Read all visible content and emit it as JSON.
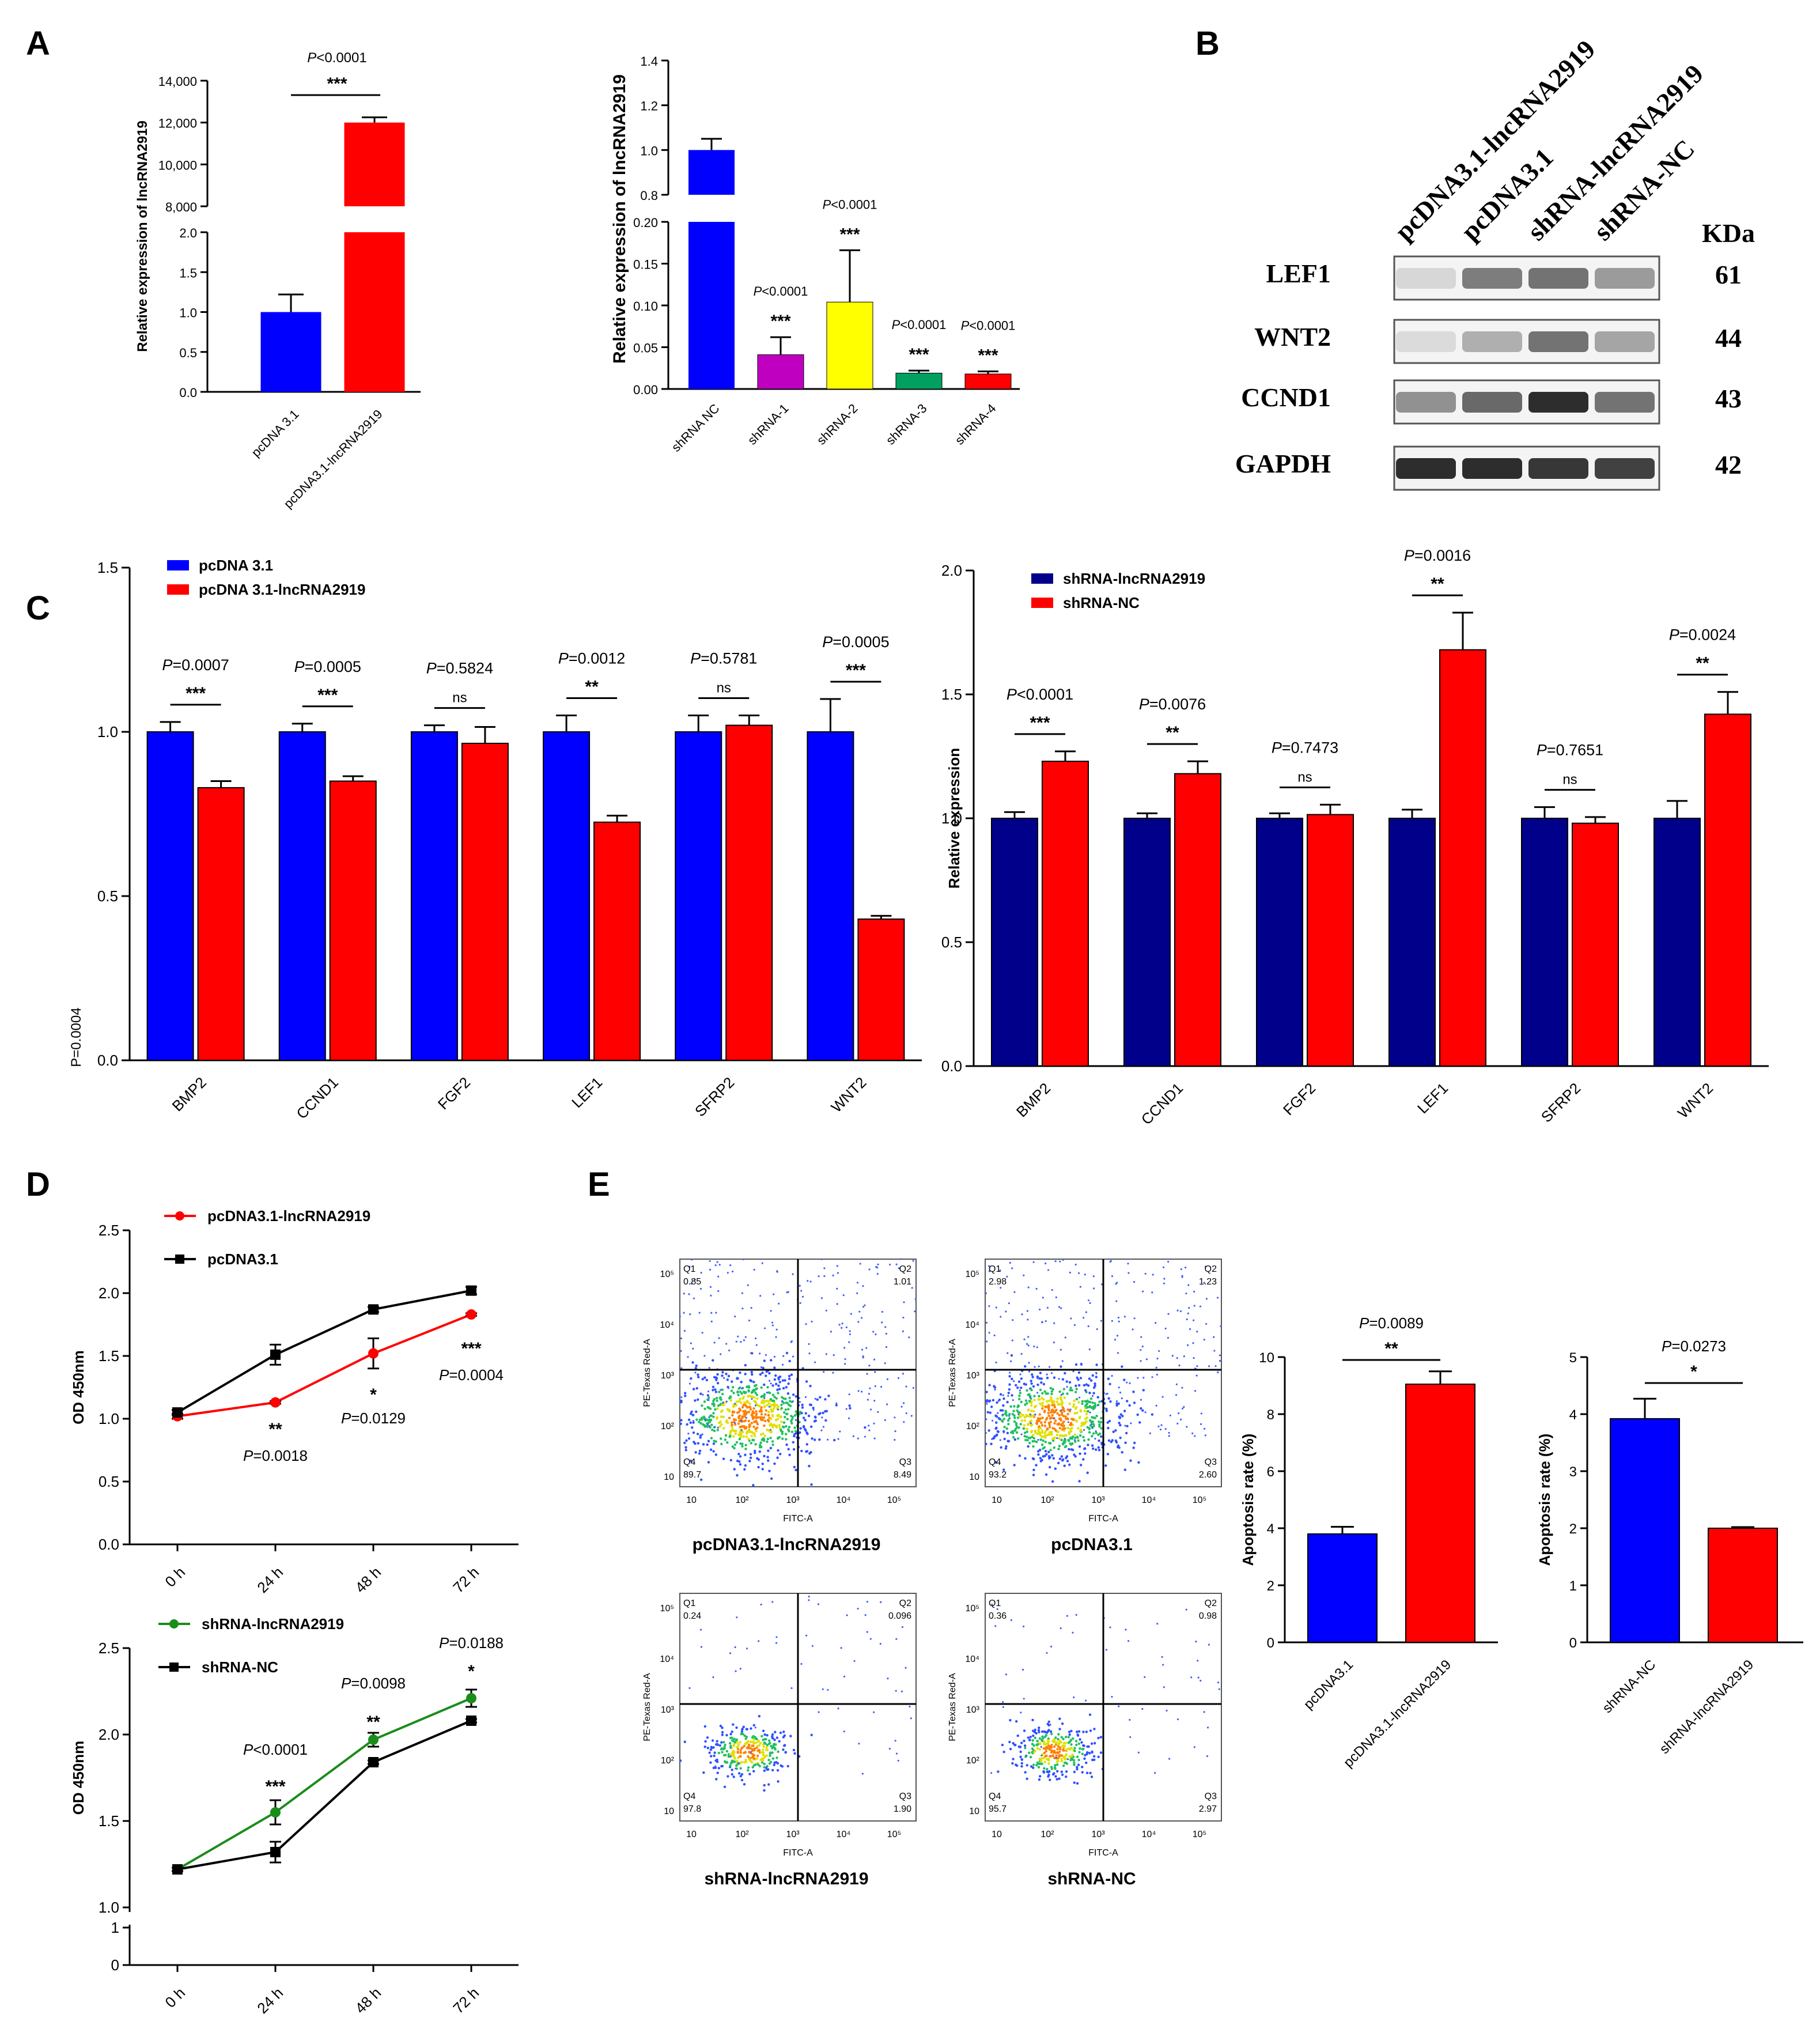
{
  "panels": {
    "A": "A",
    "B": "B",
    "C": "C",
    "D": "D",
    "E": "E"
  },
  "colors": {
    "blue": "#0000ff",
    "red": "#ff0000",
    "navy": "#00008b",
    "magenta": "#c000c0",
    "yellow": "#ffff00",
    "green": "#00a060",
    "black": "#000000",
    "green_line": "#1a8c1a"
  },
  "chart_data": [
    {
      "id": "A1",
      "type": "bar",
      "broken_axis": true,
      "ylabel": "Relative expression of lncRNA2919",
      "categories": [
        "pcDNA 3.1",
        "pcDNA3.1-lncRNA2919"
      ],
      "values": [
        1.0,
        12000
      ],
      "errors": [
        0.22,
        250
      ],
      "colors": [
        "blue",
        "red"
      ],
      "lower_ylim": [
        0,
        2.0
      ],
      "lower_ticks": [
        "0.0",
        "0.5",
        "1.0",
        "1.5",
        "2.0"
      ],
      "upper_ylim": [
        8000,
        14000
      ],
      "upper_ticks": [
        "8,000",
        "10,000",
        "12,000",
        "14,000"
      ],
      "annotations": [
        {
          "p": "P<0.0001",
          "stars": "***",
          "between": [
            0,
            1
          ]
        }
      ]
    },
    {
      "id": "A2",
      "type": "bar",
      "broken_axis": true,
      "ylabel": "Relative expression of lncRNA2919",
      "categories": [
        "shRNA NC",
        "shRNA-1",
        "shRNA-2",
        "shRNA-3",
        "shRNA-4"
      ],
      "values": [
        1.0,
        0.041,
        0.104,
        0.019,
        0.018
      ],
      "errors": [
        0.05,
        0.021,
        0.062,
        0.003,
        0.003
      ],
      "colors": [
        "blue",
        "magenta",
        "yellow",
        "green",
        "red"
      ],
      "lower_ylim": [
        0,
        0.2
      ],
      "lower_ticks": [
        "0.00",
        "0.05",
        "0.10",
        "0.15",
        "0.20"
      ],
      "upper_ylim": [
        0.8,
        1.4
      ],
      "upper_ticks": [
        "0.8",
        "1.0",
        "1.2",
        "1.4"
      ],
      "annotations": [
        {
          "p": "",
          "stars": "",
          "bar": 0
        },
        {
          "p": "P<0.0001",
          "stars": "***",
          "bar": 1
        },
        {
          "p": "P<0.0001",
          "stars": "***",
          "bar": 2
        },
        {
          "p": "P<0.0001",
          "stars": "***",
          "bar": 3
        },
        {
          "p": "P<0.0001",
          "stars": "***",
          "bar": 4
        }
      ]
    },
    {
      "id": "C1",
      "type": "bar",
      "legend": [
        "pcDNA 3.1",
        "pcDNA 3.1-lncRNA2919"
      ],
      "ylabel": "P=0.0004",
      "categories": [
        "BMP2",
        "CCND1",
        "FGF2",
        "LEF1",
        "SFRP2",
        "WNT2"
      ],
      "ylim": [
        0,
        1.5
      ],
      "yticks": [
        "0.0",
        "0.5",
        "1.0",
        "1.5"
      ],
      "series": [
        {
          "name": "pcDNA 3.1",
          "color": "blue",
          "values": [
            1.0,
            1.0,
            1.0,
            1.0,
            1.0,
            1.0
          ],
          "errors": [
            0.03,
            0.025,
            0.02,
            0.05,
            0.05,
            0.1
          ]
        },
        {
          "name": "pcDNA 3.1-lncRNA2919",
          "color": "red",
          "values": [
            0.83,
            0.85,
            0.965,
            0.725,
            1.02,
            0.43
          ],
          "errors": [
            0.02,
            0.015,
            0.05,
            0.02,
            0.03,
            0.01
          ]
        }
      ],
      "annotations": [
        {
          "p": "P=0.0007",
          "stars": "***"
        },
        {
          "p": "P=0.0005",
          "stars": "***"
        },
        {
          "p": "P=0.5824",
          "stars": "ns"
        },
        {
          "p": "P=0.0012",
          "stars": "**"
        },
        {
          "p": "P=0.5781",
          "stars": "ns"
        },
        {
          "p": "P=0.0005",
          "stars": "***"
        }
      ]
    },
    {
      "id": "C2",
      "type": "bar",
      "legend": [
        "shRNA-lncRNA2919",
        "shRNA-NC"
      ],
      "ylabel": "Relative expression",
      "categories": [
        "BMP2",
        "CCND1",
        "FGF2",
        "LEF1",
        "SFRP2",
        "WNT2"
      ],
      "ylim": [
        0,
        2.0
      ],
      "yticks": [
        "0.0",
        "0.5",
        "1.0",
        "1.5",
        "2.0"
      ],
      "series": [
        {
          "name": "shRNA-lncRNA2919",
          "color": "navy",
          "values": [
            1.0,
            1.0,
            1.0,
            1.0,
            1.0,
            1.0
          ],
          "errors": [
            0.025,
            0.02,
            0.02,
            0.035,
            0.045,
            0.07
          ]
        },
        {
          "name": "shRNA-NC",
          "color": "red",
          "values": [
            1.23,
            1.18,
            1.015,
            1.68,
            0.98,
            1.42
          ],
          "errors": [
            0.04,
            0.05,
            0.04,
            0.15,
            0.025,
            0.09
          ]
        }
      ],
      "annotations": [
        {
          "p": "P<0.0001",
          "stars": "***"
        },
        {
          "p": "P=0.0076",
          "stars": "**"
        },
        {
          "p": "P=0.7473",
          "stars": "ns"
        },
        {
          "p": "P=0.0016",
          "stars": "**"
        },
        {
          "p": "P=0.7651",
          "stars": "ns"
        },
        {
          "p": "P=0.0024",
          "stars": "**"
        }
      ]
    },
    {
      "id": "D1",
      "type": "line",
      "ylabel": "OD 450nm",
      "x": [
        "0 h",
        "24 h",
        "48 h",
        "72 h"
      ],
      "ylim": [
        0,
        2.5
      ],
      "yticks": [
        "0.0",
        "0.5",
        "1.0",
        "1.5",
        "2.0",
        "2.5"
      ],
      "series": [
        {
          "name": "pcDNA3.1-lncRNA2919",
          "color": "red",
          "marker": "circle",
          "values": [
            1.02,
            1.13,
            1.52,
            1.83
          ],
          "errors": [
            0.02,
            0.01,
            0.12,
            0.01
          ]
        },
        {
          "name": "pcDNA3.1",
          "color": "black",
          "marker": "square",
          "values": [
            1.05,
            1.51,
            1.87,
            2.02
          ],
          "errors": [
            0.02,
            0.08,
            0.02,
            0.03
          ]
        }
      ],
      "annotations": [
        {
          "stars": "**",
          "p": "P=0.0018"
        },
        {
          "stars": "*",
          "p": "P=0.0129"
        },
        {
          "stars": "***",
          "p": "P=0.0004"
        }
      ]
    },
    {
      "id": "D2",
      "type": "line",
      "broken_axis": true,
      "ylabel": "OD 450nm",
      "x": [
        "0 h",
        "24 h",
        "48 h",
        "72 h"
      ],
      "ylim": [
        1.0,
        2.5
      ],
      "yticks": [
        "1.0",
        "1.5",
        "2.0",
        "2.5"
      ],
      "lower_ticks": [
        "0",
        "1"
      ],
      "series": [
        {
          "name": "shRNA-lncRNA2919",
          "color": "green_line",
          "marker": "circle",
          "values": [
            1.22,
            1.55,
            1.97,
            2.21
          ],
          "errors": [
            0.01,
            0.07,
            0.04,
            0.05
          ]
        },
        {
          "name": "shRNA-NC",
          "color": "black",
          "marker": "square",
          "values": [
            1.22,
            1.32,
            1.84,
            2.08
          ],
          "errors": [
            0.01,
            0.06,
            0.01,
            0.01
          ]
        }
      ],
      "annotations": [
        {
          "stars": "***",
          "p": "P<0.0001"
        },
        {
          "stars": "**",
          "p": "P=0.0098"
        },
        {
          "stars": "*",
          "p": "P=0.0188"
        }
      ]
    },
    {
      "id": "E1",
      "type": "bar",
      "ylabel": "Apoptosis rate (%)",
      "categories": [
        "pcDNA3.1",
        "pcDNA3.1-lncRNA2919"
      ],
      "values": [
        3.8,
        9.05
      ],
      "errors": [
        0.25,
        0.45
      ],
      "colors": [
        "blue",
        "red"
      ],
      "ylim": [
        0,
        10
      ],
      "yticks": [
        "0",
        "2",
        "4",
        "6",
        "8",
        "10"
      ],
      "annotation": {
        "p": "P=0.0089",
        "stars": "**"
      }
    },
    {
      "id": "E2",
      "type": "bar",
      "ylabel": "Apoptosis rate (%)",
      "categories": [
        "shRNA-NC",
        "shRNA-lncRNA2919"
      ],
      "values": [
        3.92,
        2.0
      ],
      "errors": [
        0.35,
        0.02
      ],
      "colors": [
        "blue",
        "red"
      ],
      "ylim": [
        0,
        5
      ],
      "yticks": [
        "0",
        "1",
        "2",
        "3",
        "4",
        "5"
      ],
      "annotation": {
        "p": "P=0.0273",
        "stars": "*"
      }
    }
  ],
  "western_blot": {
    "lanes": [
      "pcDNA3.1-lncRNA2919",
      "pcDNA3.1",
      "shRNA-lncRNA2919",
      "shRNA-NC"
    ],
    "kda_header": "KDa",
    "rows": [
      {
        "label": "LEF1",
        "kda": "61",
        "intensity": [
          0.1,
          0.55,
          0.6,
          0.4
        ]
      },
      {
        "label": "WNT2",
        "kda": "44",
        "intensity": [
          0.08,
          0.3,
          0.6,
          0.35
        ]
      },
      {
        "label": "CCND1",
        "kda": "43",
        "intensity": [
          0.45,
          0.65,
          0.95,
          0.6
        ]
      },
      {
        "label": "GAPDH",
        "kda": "42",
        "intensity": [
          0.95,
          0.95,
          0.9,
          0.85
        ]
      }
    ]
  },
  "flow": {
    "x_label": "FITC-A",
    "y_label": "PE-Texas Red-A",
    "x_ticks": [
      "10",
      "10²",
      "10³",
      "10⁴",
      "10⁵"
    ],
    "y_ticks": [
      "10",
      "10²",
      "10³",
      "10⁴",
      "10⁵"
    ],
    "plots": [
      {
        "title": "pcDNA3.1-lncRNA2919",
        "q1": "Q1",
        "q1v": "0.85",
        "q2": "Q2",
        "q2v": "1.01",
        "q3": "Q3",
        "q3v": "8.49",
        "q4": "Q4",
        "q4v": "89.7",
        "dense": true
      },
      {
        "title": "pcDNA3.1",
        "q1": "Q1",
        "q1v": "2.98",
        "q2": "Q2",
        "q2v": "1.23",
        "q3": "Q3",
        "q3v": "2.60",
        "q4": "Q4",
        "q4v": "93.2",
        "dense": true
      },
      {
        "title": "shRNA-lncRNA2919",
        "q1": "Q1",
        "q1v": "0.24",
        "q2": "Q2",
        "q2v": "0.096",
        "q3": "Q3",
        "q3v": "1.90",
        "q4": "Q4",
        "q4v": "97.8",
        "dense": false
      },
      {
        "title": "shRNA-NC",
        "q1": "Q1",
        "q1v": "0.36",
        "q2": "Q2",
        "q2v": "0.98",
        "q3": "Q3",
        "q3v": "2.97",
        "q4": "Q4",
        "q4v": "95.7",
        "dense": false
      }
    ]
  }
}
